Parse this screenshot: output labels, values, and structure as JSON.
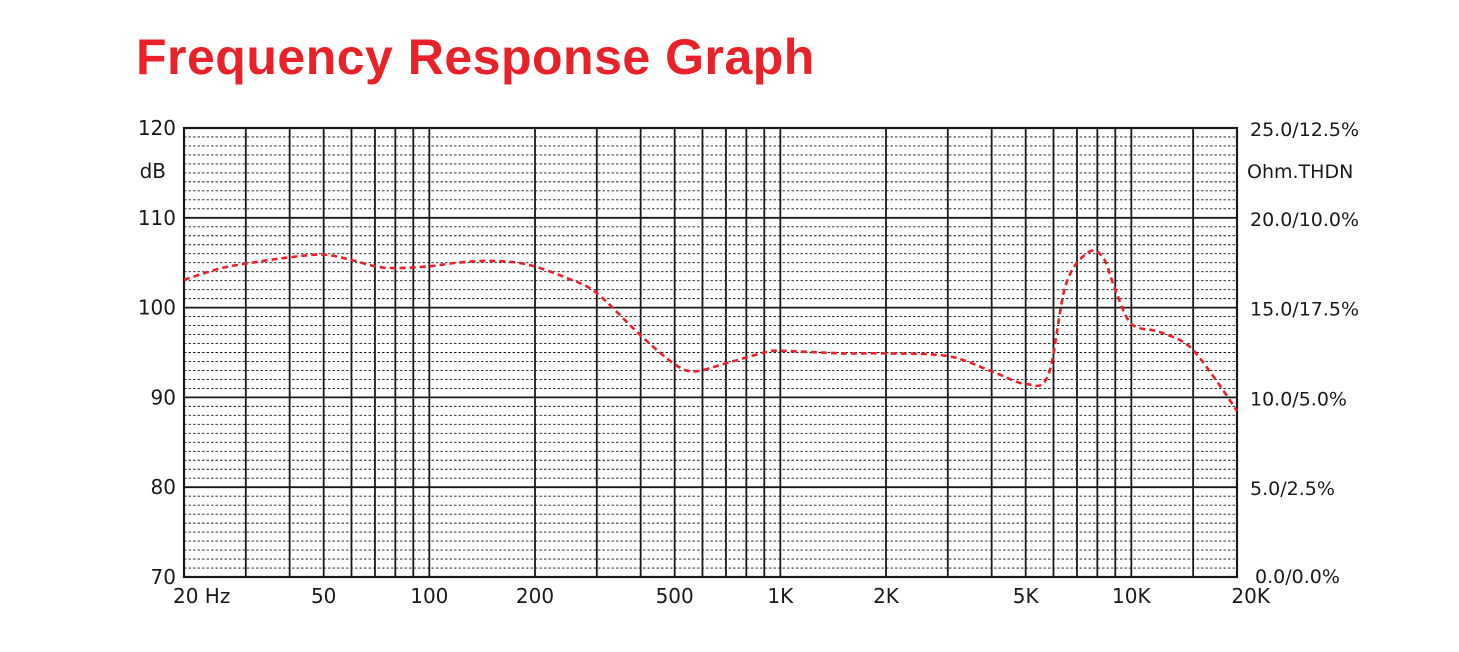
{
  "colors": {
    "title": "#e8212b",
    "curve": "#e8212b",
    "grid": "#1a1a1a"
  },
  "chart_data": {
    "type": "line",
    "title": "Frequency Response Graph",
    "ylabel": "dB",
    "ylim": [
      70,
      120
    ],
    "xlim": [
      20,
      20000
    ],
    "x_scale": "log",
    "grid": true,
    "x_tick_labels": [
      {
        "value": 20,
        "label": "20  Hz"
      },
      {
        "value": 50,
        "label": "50"
      },
      {
        "value": 100,
        "label": "100"
      },
      {
        "value": 200,
        "label": "200"
      },
      {
        "value": 500,
        "label": "500"
      },
      {
        "value": 1000,
        "label": "1K"
      },
      {
        "value": 2000,
        "label": "2K"
      },
      {
        "value": 5000,
        "label": "5K"
      },
      {
        "value": 10000,
        "label": "10K"
      },
      {
        "value": 20000,
        "label": "20K"
      }
    ],
    "x_major_lines": [
      20,
      30,
      40,
      50,
      60,
      70,
      80,
      90,
      100,
      200,
      300,
      400,
      500,
      600,
      700,
      800,
      900,
      1000,
      2000,
      3000,
      4000,
      5000,
      6000,
      7000,
      8000,
      9000,
      10000,
      15000,
      20000
    ],
    "y_ticks": [
      {
        "value": 120,
        "label": "120"
      },
      {
        "value": 110,
        "label": "110"
      },
      {
        "value": 100,
        "label": "100"
      },
      {
        "value": 90,
        "label": "90"
      },
      {
        "value": 80,
        "label": "80"
      },
      {
        "value": 70,
        "label": "70"
      }
    ],
    "y_minor_step": 1,
    "right_axis": {
      "labels": [
        {
          "value": 120,
          "label": "25.0/12.5%"
        },
        {
          "value": 110,
          "label": "20.0/10.0%"
        },
        {
          "value": 100,
          "label": "15.0/17.5%"
        },
        {
          "value": 90,
          "label": "10.0/5.0%"
        },
        {
          "value": 80,
          "label": "5.0/2.5%"
        },
        {
          "value": 70,
          "label": "0.0/0.0%"
        }
      ],
      "unit_label": "Ohm.THDN"
    },
    "series": [
      {
        "line_style": "dashed",
        "x": [
          20,
          25,
          30,
          40,
          50,
          60,
          70,
          80,
          100,
          120,
          150,
          190,
          250,
          300,
          400,
          500,
          570,
          700,
          900,
          1000,
          1500,
          2000,
          3000,
          4000,
          5000,
          5800,
          6500,
          7500,
          8300,
          9000,
          10000,
          12000,
          14500,
          17000,
          20000
        ],
        "y": [
          103.1,
          104.3,
          104.9,
          105.6,
          105.9,
          105.3,
          104.6,
          104.4,
          104.6,
          105,
          105.2,
          104.8,
          103.2,
          101.6,
          96.9,
          93.7,
          92.9,
          93.8,
          95,
          95.2,
          94.9,
          94.9,
          94.6,
          92.9,
          91.5,
          92.5,
          102.5,
          106.1,
          105.6,
          102,
          98.2,
          97.3,
          95.8,
          92.5,
          88.5
        ]
      }
    ]
  }
}
